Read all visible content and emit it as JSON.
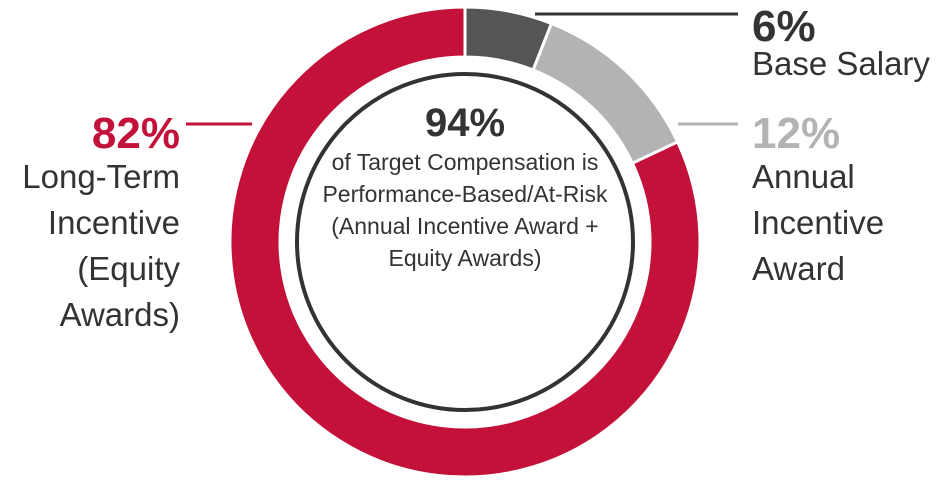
{
  "chart_data": {
    "type": "pie",
    "variant": "donut",
    "slices": [
      {
        "label": "Base Salary",
        "value": 6,
        "value_label": "6%",
        "color": "#555555",
        "label_color": "#333333"
      },
      {
        "label": "Annual Incentive Award",
        "value": 12,
        "value_label": "12%",
        "color": "#b3b3b3",
        "label_color": "#b3b3b3"
      },
      {
        "label": "Long-Term Incentive (Equity Awards)",
        "value": 82,
        "value_label": "82%",
        "color": "#c4113a",
        "label_color": "#c4113a"
      }
    ],
    "center": {
      "value": "94%",
      "text": "of Target Compensation is Performance-Based/At-Risk (Annual Incentive Award + Equity Awards)"
    }
  }
}
